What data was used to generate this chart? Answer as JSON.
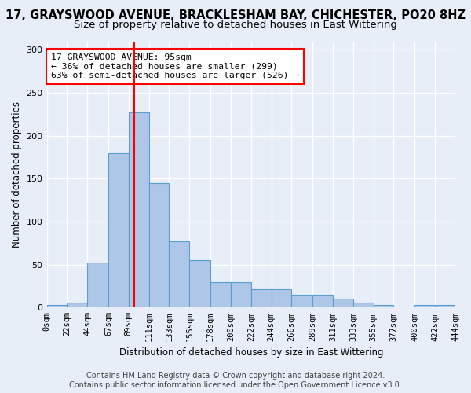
{
  "title": "17, GRAYSWOOD AVENUE, BRACKLESHAM BAY, CHICHESTER, PO20 8HZ",
  "subtitle": "Size of property relative to detached houses in East Wittering",
  "xlabel": "Distribution of detached houses by size in East Wittering",
  "ylabel": "Number of detached properties",
  "footer_line1": "Contains HM Land Registry data © Crown copyright and database right 2024.",
  "footer_line2": "Contains public sector information licensed under the Open Government Licence v3.0.",
  "bar_edges": [
    0,
    22,
    44,
    67,
    89,
    111,
    133,
    155,
    178,
    200,
    222,
    244,
    266,
    289,
    311,
    333,
    355,
    377,
    400,
    422,
    444
  ],
  "bar_heights": [
    3,
    6,
    52,
    180,
    227,
    145,
    77,
    55,
    30,
    30,
    21,
    21,
    15,
    15,
    10,
    6,
    3,
    0,
    3,
    3
  ],
  "bar_color": "#aec6e8",
  "bar_edge_color": "#5a9fd4",
  "property_size": 95,
  "vline_color": "red",
  "annotation_text": "17 GRAYSWOOD AVENUE: 95sqm\n← 36% of detached houses are smaller (299)\n63% of semi-detached houses are larger (526) →",
  "annotation_box_color": "white",
  "annotation_box_edge_color": "red",
  "ylim": [
    0,
    310
  ],
  "tick_labels": [
    "0sqm",
    "22sqm",
    "44sqm",
    "67sqm",
    "89sqm",
    "111sqm",
    "133sqm",
    "155sqm",
    "178sqm",
    "200sqm",
    "222sqm",
    "244sqm",
    "266sqm",
    "289sqm",
    "311sqm",
    "333sqm",
    "355sqm",
    "377sqm",
    "400sqm",
    "422sqm",
    "444sqm"
  ],
  "yticks": [
    0,
    50,
    100,
    150,
    200,
    250,
    300
  ],
  "background_color": "#e8eef8",
  "grid_color": "#ffffff",
  "title_fontsize": 10.5,
  "subtitle_fontsize": 9.5,
  "axis_label_fontsize": 8.5,
  "tick_fontsize": 7.5,
  "footer_fontsize": 7.0
}
